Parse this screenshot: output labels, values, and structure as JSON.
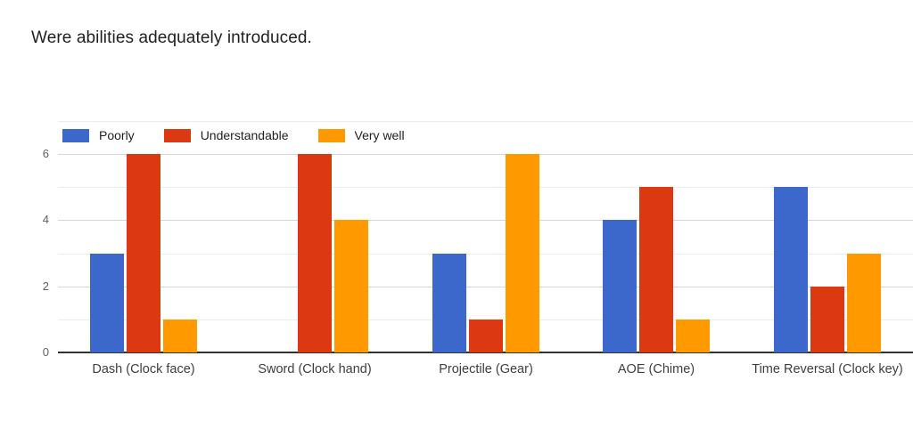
{
  "header": {
    "title": "Were abilities adequately introduced."
  },
  "chart_data": {
    "type": "bar",
    "title": "Were abilities adequately introduced.",
    "categories": [
      "Dash (Clock face)",
      "Sword (Clock hand)",
      "Projectile (Gear)",
      "AOE (Chime)",
      "Time Reversal (Clock key)"
    ],
    "series": [
      {
        "name": "Poorly",
        "color": "#3b68ca",
        "values": [
          3,
          0,
          3,
          4,
          5
        ]
      },
      {
        "name": "Understandable",
        "color": "#dc3912",
        "values": [
          6,
          6,
          1,
          5,
          2
        ]
      },
      {
        "name": "Very well",
        "color": "#ff9900",
        "values": [
          1,
          4,
          6,
          1,
          3
        ]
      }
    ],
    "xlabel": "",
    "ylabel": "",
    "ylim": [
      0,
      7
    ],
    "yticks": [
      0,
      2,
      4,
      6
    ],
    "minor_gridlines": [
      1,
      3,
      5,
      7
    ],
    "grid": true,
    "legend_position": "top-left"
  },
  "colors": {
    "background": "#ffffff",
    "major_gridline": "#d6d6d6",
    "minor_gridline": "#ececec",
    "baseline": "#333333",
    "title_text": "#212121",
    "axis_text": "#616161",
    "category_text": "#3c4043"
  }
}
